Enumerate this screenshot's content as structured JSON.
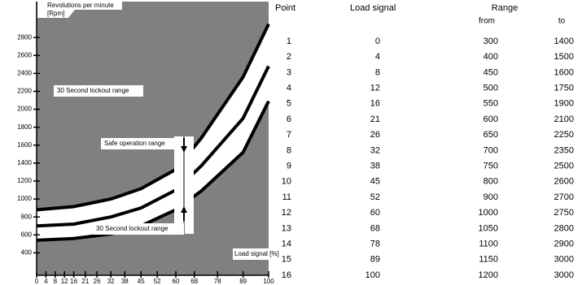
{
  "chart_data": {
    "type": "line",
    "y_label": [
      "Revolutions per minute",
      "[Rpm]"
    ],
    "x_label": "Load signal [%]",
    "annotations": [
      "30 Second lockout range",
      "Safe operation range",
      "30 Second lockout range"
    ],
    "x": [
      0,
      16,
      32,
      45,
      60,
      71,
      89,
      100
    ],
    "series": [
      {
        "color": "#000000",
        "values": [
          880,
          915,
          1000,
          1115,
          1330,
          1680,
          2360,
          2950
        ]
      },
      {
        "color": "#000000",
        "values": [
          700,
          720,
          800,
          900,
          1100,
          1370,
          1900,
          2480
        ]
      },
      {
        "color": "#000000",
        "values": [
          540,
          560,
          610,
          700,
          880,
          1090,
          1520,
          2090
        ]
      }
    ],
    "background": "#808080",
    "band_color": "#ffffff",
    "xlim": [
      0,
      100
    ],
    "xticks": [
      0,
      4,
      8,
      12,
      16,
      21,
      26,
      32,
      38,
      45,
      52,
      60,
      68,
      78,
      89,
      100
    ],
    "ylim": [
      150,
      3200
    ],
    "yticks": [
      400,
      600,
      800,
      1000,
      1200,
      1400,
      1600,
      1800,
      2000,
      2200,
      2400,
      2600,
      2800
    ]
  },
  "table": {
    "headers": [
      "Point",
      "Load signal",
      "Range"
    ],
    "subheaders": [
      "from",
      "to"
    ],
    "rows": [
      [
        1,
        0,
        300,
        1400
      ],
      [
        2,
        4,
        400,
        1500
      ],
      [
        3,
        8,
        450,
        1600
      ],
      [
        4,
        12,
        500,
        1750
      ],
      [
        5,
        16,
        550,
        1900
      ],
      [
        6,
        21,
        600,
        2100
      ],
      [
        7,
        26,
        650,
        2250
      ],
      [
        8,
        32,
        700,
        2350
      ],
      [
        9,
        38,
        750,
        2500
      ],
      [
        10,
        45,
        800,
        2600
      ],
      [
        11,
        52,
        900,
        2700
      ],
      [
        12,
        60,
        1000,
        2750
      ],
      [
        13,
        68,
        1050,
        2800
      ],
      [
        14,
        78,
        1100,
        2900
      ],
      [
        15,
        89,
        1150,
        3000
      ],
      [
        16,
        100,
        1200,
        3000
      ]
    ]
  }
}
